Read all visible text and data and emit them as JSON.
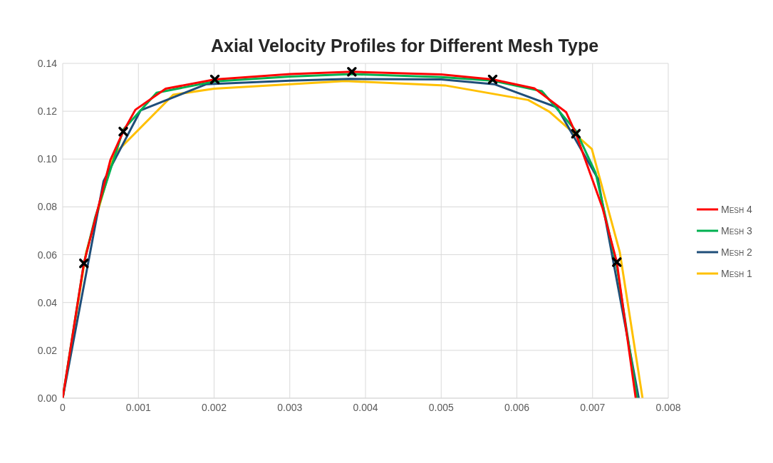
{
  "chart_data": {
    "type": "line",
    "title": "Axial Velocity Profiles for Different Mesh Type",
    "xlim": [
      0,
      0.008
    ],
    "xticks": [
      0,
      0.001,
      0.002,
      0.003,
      0.004,
      0.005,
      0.006,
      0.007,
      0.008
    ],
    "ylim": [
      0,
      0.14
    ],
    "yticks": [
      {
        "value": 0,
        "label": "0.00"
      },
      {
        "value": 0.02,
        "label": "0.02"
      },
      {
        "value": 0.04,
        "label": "0.04"
      },
      {
        "value": 0.06,
        "label": "0.06"
      },
      {
        "value": 0.08,
        "label": "0.08"
      },
      {
        "value": 0.1,
        "label": "0.10"
      },
      {
        "value": 0.12,
        "label": "0.12"
      },
      {
        "value": 0.14,
        "label": "0.14"
      }
    ],
    "grid": true,
    "legend": "right",
    "line_style": "solid",
    "series": [
      {
        "name": "Mesh 4",
        "color": "#ff0000",
        "x": [
          0,
          0.00028,
          0.00063,
          0.0008,
          0.00096,
          0.00136,
          0.00201,
          0.003,
          0.00382,
          0.005,
          0.00568,
          0.00623,
          0.00665,
          0.00678,
          0.00713,
          0.00732,
          0.00757
        ],
        "values": [
          0,
          0.0564,
          0.0996,
          0.1115,
          0.1206,
          0.1294,
          0.1333,
          0.1355,
          0.1365,
          0.1354,
          0.1333,
          0.1296,
          0.1196,
          0.1106,
          0.0797,
          0.0569,
          0
        ]
      },
      {
        "name": "Mesh 3",
        "color": "#00b050",
        "x": [
          0,
          0.00028,
          0.00043,
          0.0008,
          0.00124,
          0.00201,
          0.003,
          0.00382,
          0.005,
          0.00568,
          0.00633,
          0.00678,
          0.00704,
          0.00732,
          0.00759
        ],
        "values": [
          0,
          0.0564,
          0.0757,
          0.1123,
          0.1277,
          0.1325,
          0.1345,
          0.1355,
          0.1343,
          0.1328,
          0.1284,
          0.1118,
          0.0942,
          0.055,
          0
        ]
      },
      {
        "name": "Mesh 2",
        "color": "#1f4e79",
        "x": [
          0,
          0.00054,
          0.00103,
          0.0019,
          0.003,
          0.0038,
          0.005,
          0.0057,
          0.00653,
          0.00707,
          0.00761
        ],
        "values": [
          0,
          0.0908,
          0.1204,
          0.1313,
          0.1328,
          0.1335,
          0.1333,
          0.1313,
          0.1216,
          0.0918,
          0
        ]
      },
      {
        "name": "Mesh 1",
        "color": "#ffc000",
        "x": [
          0,
          0.00031,
          0.00068,
          0.00146,
          0.002,
          0.00373,
          0.00505,
          0.00615,
          0.00643,
          0.00699,
          0.00736,
          0.00766
        ],
        "values": [
          0,
          0.061,
          0.102,
          0.1269,
          0.1294,
          0.1326,
          0.1308,
          0.1247,
          0.1198,
          0.1042,
          0.061,
          0
        ]
      },
      {
        "type": "scatter",
        "color": "#000000",
        "marker": "cross",
        "x": [
          0.00028,
          0.0008,
          0.00201,
          0.00382,
          0.00568,
          0.00678,
          0.00732
        ],
        "values": [
          0.0564,
          0.1115,
          0.1333,
          0.1365,
          0.1333,
          0.1106,
          0.0569
        ]
      }
    ]
  }
}
